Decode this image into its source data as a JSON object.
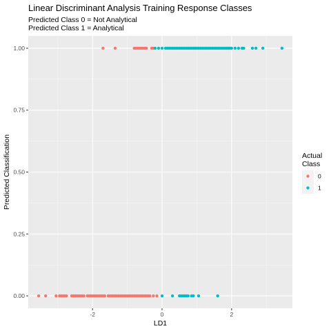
{
  "chart_data": {
    "type": "scatter",
    "title": "Linear Discriminant Analysis Training Response Classes",
    "subtitle_lines": [
      "Predicted Class 0 = Not Analytical",
      "Predicted Class 1 = Analytical"
    ],
    "xlabel": "LD1",
    "ylabel": "Predicted Classification",
    "xlim": [
      -3.85,
      3.75
    ],
    "ylim": [
      -0.05,
      1.05
    ],
    "x_ticks": [
      -2,
      0,
      2
    ],
    "x_tick_labels": [
      "-2",
      "0",
      "2"
    ],
    "y_ticks": [
      0,
      0.25,
      0.5,
      0.75,
      1
    ],
    "y_tick_labels": [
      "0.00",
      "0.25",
      "0.50",
      "0.75",
      "1.00"
    ],
    "grid": true,
    "legend": {
      "title_lines": [
        "Actual",
        "Class"
      ],
      "position": "right",
      "entries": [
        {
          "label": "0",
          "color": "#F8766D"
        },
        {
          "label": "1",
          "color": "#00BFC4"
        }
      ]
    },
    "series": [
      {
        "name": "0",
        "color": "#F8766D",
        "points": [
          [
            -3.55,
            0
          ],
          [
            -3.35,
            0
          ],
          [
            -3.05,
            0
          ],
          [
            -2.95,
            0
          ],
          [
            -2.9,
            0
          ],
          [
            -2.85,
            0
          ],
          [
            -2.8,
            0
          ],
          [
            -2.75,
            0
          ],
          [
            -2.6,
            0
          ],
          [
            -2.55,
            0
          ],
          [
            -2.5,
            0
          ],
          [
            -2.45,
            0
          ],
          [
            -2.4,
            0
          ],
          [
            -2.35,
            0
          ],
          [
            -2.3,
            0
          ],
          [
            -2.25,
            0
          ],
          [
            -2.15,
            0
          ],
          [
            -2.1,
            0
          ],
          [
            -2.05,
            0
          ],
          [
            -2.0,
            0
          ],
          [
            -1.95,
            0
          ],
          [
            -1.9,
            0
          ],
          [
            -1.85,
            0
          ],
          [
            -1.8,
            0
          ],
          [
            -1.75,
            0
          ],
          [
            -1.7,
            0
          ],
          [
            -1.65,
            0
          ],
          [
            -1.55,
            0
          ],
          [
            -1.5,
            0
          ],
          [
            -1.45,
            0
          ],
          [
            -1.4,
            0
          ],
          [
            -1.35,
            0
          ],
          [
            -1.3,
            0
          ],
          [
            -1.25,
            0
          ],
          [
            -1.2,
            0
          ],
          [
            -1.15,
            0
          ],
          [
            -1.1,
            0
          ],
          [
            -1.05,
            0
          ],
          [
            -1.0,
            0
          ],
          [
            -0.95,
            0
          ],
          [
            -0.9,
            0
          ],
          [
            -0.85,
            0
          ],
          [
            -0.8,
            0
          ],
          [
            -0.75,
            0
          ],
          [
            -0.7,
            0
          ],
          [
            -0.65,
            0
          ],
          [
            -0.6,
            0
          ],
          [
            -0.55,
            0
          ],
          [
            -0.5,
            0
          ],
          [
            -0.45,
            0
          ],
          [
            -0.4,
            0
          ],
          [
            -0.35,
            0
          ],
          [
            -0.25,
            0
          ],
          [
            -0.15,
            0
          ],
          [
            -1.7,
            1
          ],
          [
            -1.35,
            1
          ],
          [
            -0.8,
            1
          ],
          [
            -0.75,
            1
          ],
          [
            -0.7,
            1
          ],
          [
            -0.65,
            1
          ],
          [
            -0.6,
            1
          ],
          [
            -0.55,
            1
          ],
          [
            -0.5,
            1
          ],
          [
            -0.45,
            1
          ],
          [
            -0.3,
            1
          ],
          [
            -0.25,
            1
          ]
        ]
      },
      {
        "name": "1",
        "color": "#00BFC4",
        "points": [
          [
            0.0,
            0
          ],
          [
            0.3,
            0
          ],
          [
            0.5,
            0
          ],
          [
            0.55,
            0
          ],
          [
            0.6,
            0
          ],
          [
            0.65,
            0
          ],
          [
            0.7,
            0
          ],
          [
            0.75,
            0
          ],
          [
            0.85,
            0
          ],
          [
            0.9,
            0
          ],
          [
            1.05,
            0
          ],
          [
            1.6,
            0
          ],
          [
            -0.2,
            1
          ],
          [
            -0.1,
            1
          ],
          [
            0.0,
            1
          ],
          [
            0.1,
            1
          ],
          [
            0.15,
            1
          ],
          [
            0.2,
            1
          ],
          [
            0.25,
            1
          ],
          [
            0.3,
            1
          ],
          [
            0.35,
            1
          ],
          [
            0.4,
            1
          ],
          [
            0.45,
            1
          ],
          [
            0.5,
            1
          ],
          [
            0.55,
            1
          ],
          [
            0.6,
            1
          ],
          [
            0.65,
            1
          ],
          [
            0.7,
            1
          ],
          [
            0.75,
            1
          ],
          [
            0.8,
            1
          ],
          [
            0.85,
            1
          ],
          [
            0.9,
            1
          ],
          [
            0.95,
            1
          ],
          [
            1.0,
            1
          ],
          [
            1.05,
            1
          ],
          [
            1.1,
            1
          ],
          [
            1.15,
            1
          ],
          [
            1.2,
            1
          ],
          [
            1.25,
            1
          ],
          [
            1.3,
            1
          ],
          [
            1.35,
            1
          ],
          [
            1.4,
            1
          ],
          [
            1.45,
            1
          ],
          [
            1.5,
            1
          ],
          [
            1.55,
            1
          ],
          [
            1.6,
            1
          ],
          [
            1.65,
            1
          ],
          [
            1.7,
            1
          ],
          [
            1.75,
            1
          ],
          [
            1.8,
            1
          ],
          [
            1.85,
            1
          ],
          [
            1.9,
            1
          ],
          [
            1.95,
            1
          ],
          [
            2.0,
            1
          ],
          [
            2.1,
            1
          ],
          [
            2.2,
            1
          ],
          [
            2.3,
            1
          ],
          [
            2.35,
            1
          ],
          [
            2.6,
            1
          ],
          [
            2.7,
            1
          ],
          [
            2.9,
            1
          ],
          [
            3.45,
            1
          ]
        ]
      }
    ]
  }
}
